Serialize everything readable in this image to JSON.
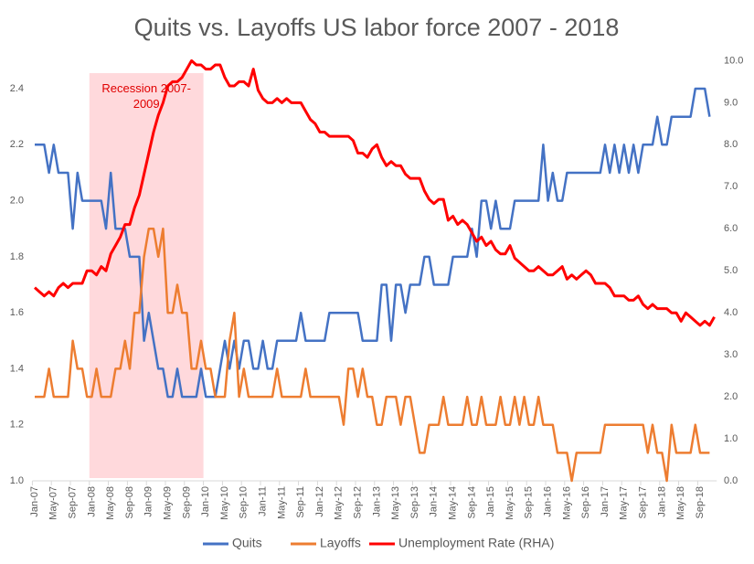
{
  "chart_data": {
    "type": "line",
    "title": "Quits vs. Layoffs US labor force 2007 - 2018",
    "categories": [
      "Jan-07",
      null,
      null,
      null,
      "May-07",
      null,
      null,
      null,
      "Sep-07",
      null,
      null,
      null,
      "Jan-08",
      null,
      null,
      null,
      "May-08",
      null,
      null,
      null,
      "Sep-08",
      null,
      null,
      null,
      "Jan-09",
      null,
      null,
      null,
      "May-09",
      null,
      null,
      null,
      "Sep-09",
      null,
      null,
      null,
      "Jan-10",
      null,
      null,
      null,
      "May-10",
      null,
      null,
      null,
      "Sep-10",
      null,
      null,
      null,
      "Jan-11",
      null,
      null,
      null,
      "May-11",
      null,
      null,
      null,
      "Sep-11",
      null,
      null,
      null,
      "Jan-12",
      null,
      null,
      null,
      "May-12",
      null,
      null,
      null,
      "Sep-12",
      null,
      null,
      null,
      "Jan-13",
      null,
      null,
      null,
      "May-13",
      null,
      null,
      null,
      "Sep-13",
      null,
      null,
      null,
      "Jan-14",
      null,
      null,
      null,
      "May-14",
      null,
      null,
      null,
      "Sep-14",
      null,
      null,
      null,
      "Jan-15",
      null,
      null,
      null,
      "May-15",
      null,
      null,
      null,
      "Sep-15",
      null,
      null,
      null,
      "Jan-16",
      null,
      null,
      null,
      "May-16",
      null,
      null,
      null,
      "Sep-16",
      null,
      null,
      null,
      "Jan-17",
      null,
      null,
      null,
      "May-17",
      null,
      null,
      null,
      "Sep-17",
      null,
      null,
      null,
      "Jan-18",
      null,
      null,
      null,
      "May-18",
      null,
      null,
      null,
      "Sep-18",
      null,
      null,
      null
    ],
    "series": [
      {
        "name": "Quits",
        "color": "#4472c4",
        "values": [
          2.2,
          2.2,
          2.2,
          2.1,
          2.2,
          2.1,
          2.1,
          2.1,
          1.9,
          2.1,
          2.0,
          2.0,
          2.0,
          2.0,
          2.0,
          1.9,
          2.1,
          1.9,
          1.9,
          1.9,
          1.8,
          1.8,
          1.8,
          1.5,
          1.6,
          1.5,
          1.4,
          1.4,
          1.3,
          1.3,
          1.4,
          1.3,
          1.3,
          1.3,
          1.3,
          1.4,
          1.3,
          1.3,
          1.3,
          1.4,
          1.5,
          1.4,
          1.5,
          1.4,
          1.5,
          1.5,
          1.4,
          1.4,
          1.5,
          1.4,
          1.4,
          1.5,
          1.5,
          1.5,
          1.5,
          1.5,
          1.6,
          1.5,
          1.5,
          1.5,
          1.5,
          1.5,
          1.6,
          1.6,
          1.6,
          1.6,
          1.6,
          1.6,
          1.6,
          1.5,
          1.5,
          1.5,
          1.5,
          1.7,
          1.7,
          1.5,
          1.7,
          1.7,
          1.6,
          1.7,
          1.7,
          1.7,
          1.8,
          1.8,
          1.7,
          1.7,
          1.7,
          1.7,
          1.8,
          1.8,
          1.8,
          1.8,
          1.9,
          1.8,
          2.0,
          2.0,
          1.9,
          2.0,
          1.9,
          1.9,
          1.9,
          2.0,
          2.0,
          2.0,
          2.0,
          2.0,
          2.0,
          2.2,
          2.0,
          2.1,
          2.0,
          2.0,
          2.1,
          2.1,
          2.1,
          2.1,
          2.1,
          2.1,
          2.1,
          2.1,
          2.2,
          2.1,
          2.2,
          2.1,
          2.2,
          2.1,
          2.2,
          2.1,
          2.2,
          2.2,
          2.2,
          2.3,
          2.2,
          2.2,
          2.3,
          2.3,
          2.3,
          2.3,
          2.3,
          2.4,
          2.4,
          2.4,
          2.3,
          null
        ]
      },
      {
        "name": "Layoffs",
        "color": "#ed7d31",
        "values": [
          1.3,
          1.3,
          1.3,
          1.4,
          1.3,
          1.3,
          1.3,
          1.3,
          1.5,
          1.4,
          1.4,
          1.3,
          1.3,
          1.4,
          1.3,
          1.3,
          1.3,
          1.4,
          1.4,
          1.5,
          1.4,
          1.6,
          1.6,
          1.8,
          1.9,
          1.9,
          1.8,
          1.9,
          1.6,
          1.6,
          1.7,
          1.6,
          1.6,
          1.4,
          1.4,
          1.5,
          1.4,
          1.4,
          1.3,
          1.3,
          1.3,
          1.5,
          1.6,
          1.3,
          1.4,
          1.3,
          1.3,
          1.3,
          1.3,
          1.3,
          1.3,
          1.4,
          1.3,
          1.3,
          1.3,
          1.3,
          1.3,
          1.4,
          1.3,
          1.3,
          1.3,
          1.3,
          1.3,
          1.3,
          1.3,
          1.2,
          1.4,
          1.4,
          1.3,
          1.4,
          1.3,
          1.3,
          1.2,
          1.2,
          1.3,
          1.3,
          1.3,
          1.2,
          1.3,
          1.3,
          1.2,
          1.1,
          1.1,
          1.2,
          1.2,
          1.2,
          1.3,
          1.2,
          1.2,
          1.2,
          1.2,
          1.3,
          1.2,
          1.2,
          1.3,
          1.2,
          1.2,
          1.2,
          1.3,
          1.2,
          1.2,
          1.3,
          1.2,
          1.3,
          1.2,
          1.2,
          1.3,
          1.2,
          1.2,
          1.2,
          1.1,
          1.1,
          1.1,
          1.0,
          1.1,
          1.1,
          1.1,
          1.1,
          1.1,
          1.1,
          1.2,
          1.2,
          1.2,
          1.2,
          1.2,
          1.2,
          1.2,
          1.2,
          1.2,
          1.1,
          1.2,
          1.1,
          1.1,
          1.0,
          1.2,
          1.1,
          1.1,
          1.1,
          1.1,
          1.2,
          1.1,
          1.1,
          1.1,
          null
        ]
      },
      {
        "name": "Unemployment Rate (RHA)",
        "color": "#ff0000",
        "axis": "y2",
        "values": [
          4.6,
          4.5,
          4.4,
          4.5,
          4.4,
          4.6,
          4.7,
          4.6,
          4.7,
          4.7,
          4.7,
          5.0,
          5.0,
          4.9,
          5.1,
          5.0,
          5.4,
          5.6,
          5.8,
          6.1,
          6.1,
          6.5,
          6.8,
          7.3,
          7.8,
          8.3,
          8.7,
          9.0,
          9.4,
          9.5,
          9.5,
          9.6,
          9.8,
          10.0,
          9.9,
          9.9,
          9.8,
          9.8,
          9.9,
          9.9,
          9.6,
          9.4,
          9.4,
          9.5,
          9.5,
          9.4,
          9.8,
          9.3,
          9.1,
          9.0,
          9.0,
          9.1,
          9.0,
          9.1,
          9.0,
          9.0,
          9.0,
          8.8,
          8.6,
          8.5,
          8.3,
          8.3,
          8.2,
          8.2,
          8.2,
          8.2,
          8.2,
          8.1,
          7.8,
          7.8,
          7.7,
          7.9,
          8.0,
          7.7,
          7.5,
          7.6,
          7.5,
          7.5,
          7.3,
          7.2,
          7.2,
          7.2,
          6.9,
          6.7,
          6.6,
          6.7,
          6.7,
          6.2,
          6.3,
          6.1,
          6.2,
          6.1,
          5.9,
          5.7,
          5.8,
          5.6,
          5.7,
          5.5,
          5.4,
          5.4,
          5.6,
          5.3,
          5.2,
          5.1,
          5.0,
          5.0,
          5.1,
          5.0,
          4.9,
          4.9,
          5.0,
          5.1,
          4.8,
          4.9,
          4.8,
          4.9,
          5.0,
          4.9,
          4.7,
          4.7,
          4.7,
          4.6,
          4.4,
          4.4,
          4.4,
          4.3,
          4.3,
          4.4,
          4.2,
          4.1,
          4.2,
          4.1,
          4.1,
          4.1,
          4.0,
          4.0,
          3.8,
          4.0,
          3.9,
          3.8,
          3.7,
          3.8,
          3.7,
          3.9
        ]
      }
    ],
    "ylim": [
      1.0,
      2.5
    ],
    "yticks": [
      {
        "value": 1.0,
        "label": "1.0"
      },
      1.2,
      1.4,
      1.6,
      1.8,
      {
        "value": 2.0,
        "label": "2.0"
      },
      2.2,
      2.4
    ],
    "y2lim": [
      0,
      10
    ],
    "y2ticks": [
      {
        "value": 0,
        "label": "0.0"
      },
      {
        "value": 1,
        "label": "1.0"
      },
      {
        "value": 2,
        "label": "2.0"
      },
      {
        "value": 3,
        "label": "3.0"
      },
      {
        "value": 4,
        "label": "4.0"
      },
      {
        "value": 5,
        "label": "5.0"
      },
      {
        "value": 6,
        "label": "6.0"
      },
      {
        "value": 7,
        "label": "7.0"
      },
      {
        "value": 8,
        "label": "8.0"
      },
      {
        "value": 9,
        "label": "9.0"
      },
      {
        "value": 10,
        "label": "10.0"
      }
    ],
    "shade": {
      "label": "Recession 2007-2009",
      "from": "Jan-08",
      "to": "Jan-10",
      "color": "#ffd9dc"
    },
    "grid": false,
    "legend": "bottom"
  }
}
